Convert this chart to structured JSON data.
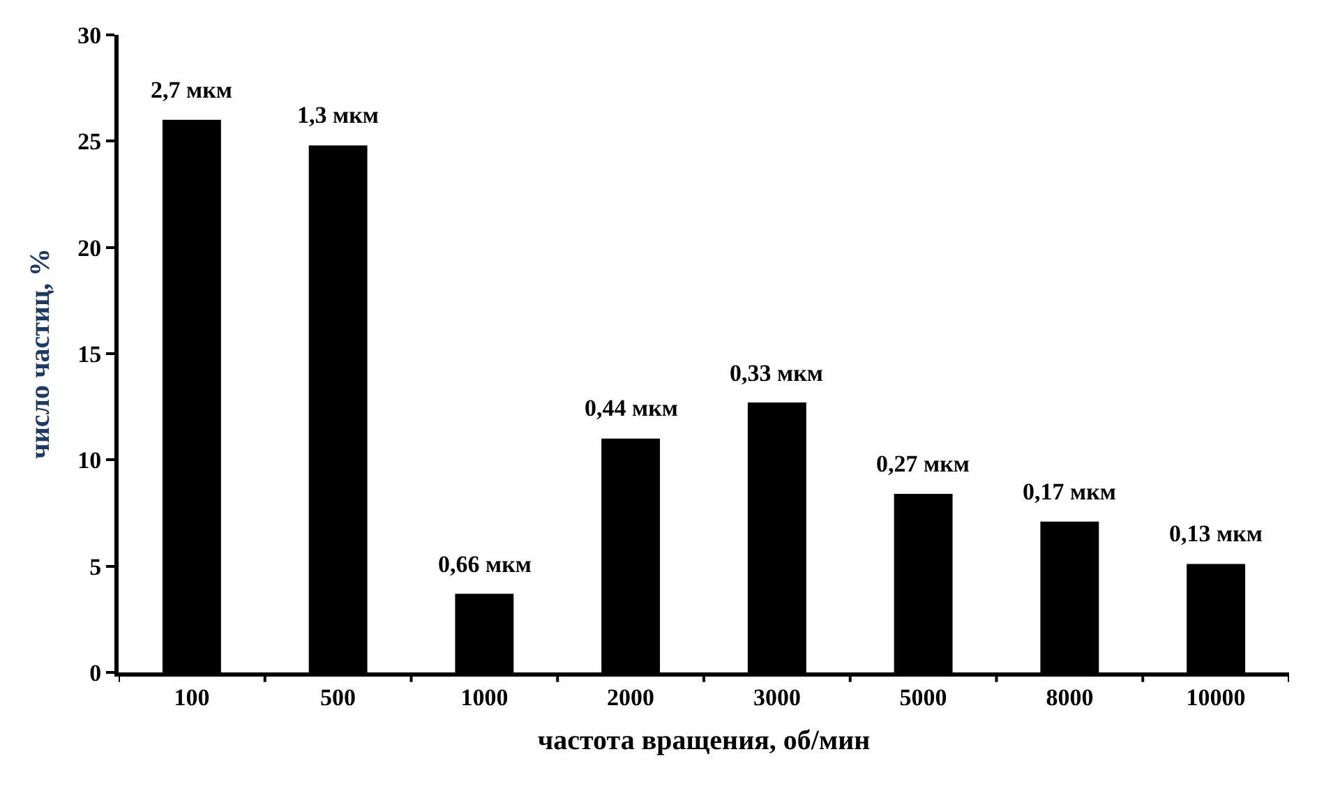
{
  "chart_data": {
    "type": "bar",
    "xlabel": "частота вращения, об/мин",
    "ylabel": "число частиц, %",
    "categories": [
      "100",
      "500",
      "1000",
      "2000",
      "3000",
      "5000",
      "8000",
      "10000"
    ],
    "values": [
      26.0,
      24.8,
      3.7,
      11.0,
      12.7,
      8.4,
      7.1,
      5.1
    ],
    "color": "#000000",
    "ylim": [
      0,
      30
    ],
    "yticks": [
      0,
      5,
      10,
      15,
      20,
      25,
      30
    ],
    "annotations": [
      {
        "text": "2,7 мкм",
        "x": "100",
        "y": 26.0
      },
      {
        "text": "1,3 мкм",
        "x": "500",
        "y": 24.8
      },
      {
        "text": "0,66 мкм",
        "x": "1000",
        "y": 3.7
      },
      {
        "text": "0,44 мкм",
        "x": "2000",
        "y": 11.0
      },
      {
        "text": "0,33 мкм",
        "x": "3000",
        "y": 12.7
      },
      {
        "text": "0,27 мкм",
        "x": "5000",
        "y": 8.4
      },
      {
        "text": "0,17 мкм",
        "x": "8000",
        "y": 7.1
      },
      {
        "text": "0,13 мкм",
        "x": "10000",
        "y": 5.1
      }
    ]
  }
}
